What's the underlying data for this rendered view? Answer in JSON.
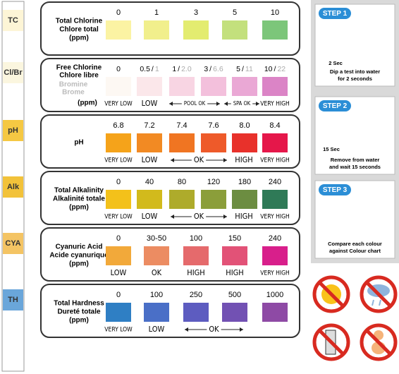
{
  "strip_labels": [
    "TC",
    "Cl/Br",
    "pH",
    "Alk",
    "CYA",
    "TH"
  ],
  "strip_colors": [
    "#fdf5d6",
    "#fbf6df",
    "#f5c843",
    "#f2c23a",
    "#f4c464",
    "#6aa6da"
  ],
  "panels": [
    {
      "title": [
        "Total Chlorine",
        "Chlore total",
        "(ppm)"
      ],
      "values": [
        "0",
        "1",
        "3",
        "5",
        "10"
      ],
      "colors": [
        "#fbf3a3",
        "#f1ef8c",
        "#e3ec70",
        "#c3e07d",
        "#7cc67a"
      ]
    },
    {
      "title": [
        "Free Chlorine",
        "Chlore libre"
      ],
      "subtitle": [
        "Bromine",
        "Brome"
      ],
      "unit": "(ppm)",
      "values": [
        {
          "chlorine": "0"
        },
        {
          "chlorine": "0.5",
          "bromine": "1"
        },
        {
          "chlorine": "1",
          "bromine": "2.0"
        },
        {
          "chlorine": "3",
          "bromine": "6.6"
        },
        {
          "chlorine": "5",
          "bromine": "11"
        },
        {
          "chlorine": "10",
          "bromine": "22"
        }
      ],
      "separator": "/",
      "colors": [
        "#fdf8f3",
        "#fbe7ea",
        "#f8d5e3",
        "#f3c0dc",
        "#eaa8d5",
        "#db84c6"
      ],
      "levels": [
        "VERY LOW",
        "LOW",
        "POOL OK",
        "SPA OK",
        "VERY HIGH"
      ]
    },
    {
      "title": [
        "pH"
      ],
      "values": [
        "6.8",
        "7.2",
        "7.4",
        "7.6",
        "8.0",
        "8.4"
      ],
      "colors": [
        "#f5a31a",
        "#f28a23",
        "#f07522",
        "#ee5a2a",
        "#e8312b",
        "#e5174a"
      ],
      "levels": [
        "VERY LOW",
        "LOW",
        "OK",
        "HIGH",
        "VERY HIGH"
      ]
    },
    {
      "title": [
        "Total Alkalinity",
        "Alkalinité totale",
        "(ppm)"
      ],
      "values": [
        "0",
        "40",
        "80",
        "120",
        "180",
        "240"
      ],
      "colors": [
        "#f3c11a",
        "#d2ba1c",
        "#aeab2b",
        "#8b9e3a",
        "#6c8d41",
        "#2f7a57"
      ],
      "levels": [
        "VERY LOW",
        "LOW",
        "OK",
        "HIGH",
        "VERY HIGH"
      ]
    },
    {
      "title": [
        "Cyanuric Acid",
        "Acide cyanurique",
        "(ppm)"
      ],
      "values": [
        "0",
        "30-50",
        "100",
        "150",
        "240"
      ],
      "colors": [
        "#f2a93a",
        "#ec8c62",
        "#e56a6c",
        "#e25277",
        "#d81f8b"
      ],
      "levels": [
        "LOW",
        "OK",
        "HIGH",
        "HIGH",
        "VERY HIGH"
      ]
    },
    {
      "title": [
        "Total Hardness",
        "Dureté totale",
        "(ppm)"
      ],
      "values": [
        "0",
        "100",
        "250",
        "500",
        "1000"
      ],
      "colors": [
        "#2f7fc4",
        "#4a6fc7",
        "#5d5cc0",
        "#7251b3",
        "#8e4aa5"
      ],
      "levels": [
        "VERY LOW",
        "LOW",
        "OK"
      ]
    }
  ],
  "steps": [
    {
      "label": "STEP 1",
      "time": "2 Sec",
      "text": [
        "Dip a test into water",
        "for 2 seconds"
      ]
    },
    {
      "label": "STEP 2",
      "time": "15 Sec",
      "text": [
        "Remove from water",
        "and wait 15 seconds"
      ]
    },
    {
      "label": "STEP 3",
      "text": [
        "Compare each colour",
        "against Colour chart"
      ]
    }
  ]
}
